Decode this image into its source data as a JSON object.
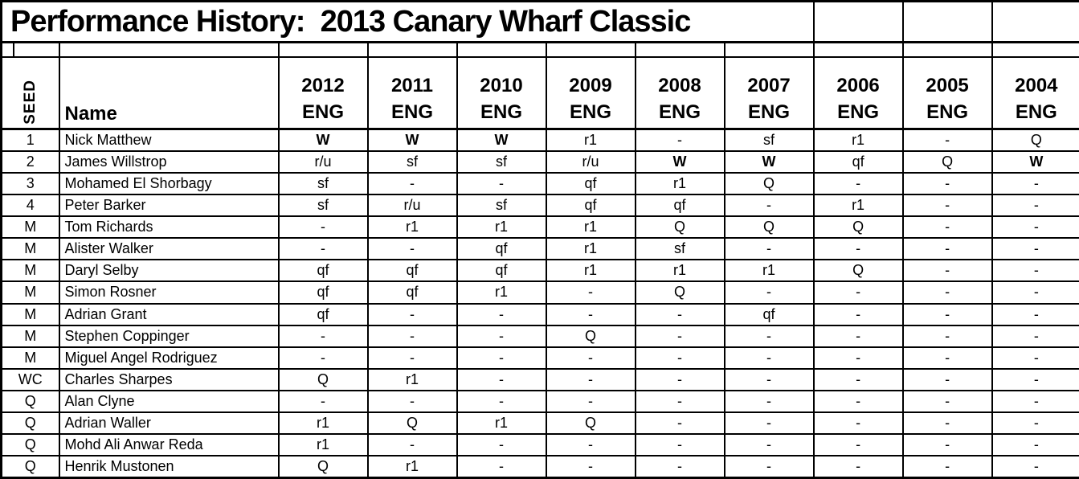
{
  "title": "Performance History:  2013 Canary Wharf Classic",
  "title_row_empty_cells": 3,
  "header": {
    "seed": "SEED",
    "name": "Name"
  },
  "years": [
    {
      "year": "2012",
      "country": "ENG"
    },
    {
      "year": "2011",
      "country": "ENG"
    },
    {
      "year": "2010",
      "country": "ENG"
    },
    {
      "year": "2009",
      "country": "ENG"
    },
    {
      "year": "2008",
      "country": "ENG"
    },
    {
      "year": "2007",
      "country": "ENG"
    },
    {
      "year": "2006",
      "country": "ENG"
    },
    {
      "year": "2005",
      "country": "ENG"
    },
    {
      "year": "2004",
      "country": "ENG"
    }
  ],
  "rows": [
    {
      "seed": "1",
      "name": "Nick Matthew",
      "results": [
        "W",
        "W",
        "W",
        "r1",
        "-",
        "sf",
        "r1",
        "-",
        "Q"
      ]
    },
    {
      "seed": "2",
      "name": "James Willstrop",
      "results": [
        "r/u",
        "sf",
        "sf",
        "r/u",
        "W",
        "W",
        "qf",
        "Q",
        "W"
      ]
    },
    {
      "seed": "3",
      "name": "Mohamed El Shorbagy",
      "results": [
        "sf",
        "-",
        "-",
        "qf",
        "r1",
        "Q",
        "-",
        "-",
        "-"
      ]
    },
    {
      "seed": "4",
      "name": "Peter Barker",
      "results": [
        "sf",
        "r/u",
        "sf",
        "qf",
        "qf",
        "-",
        "r1",
        "-",
        "-"
      ]
    },
    {
      "seed": "M",
      "name": "Tom Richards",
      "results": [
        "-",
        "r1",
        "r1",
        "r1",
        "Q",
        "Q",
        "Q",
        "-",
        "-"
      ]
    },
    {
      "seed": "M",
      "name": "Alister Walker",
      "results": [
        "-",
        "-",
        "qf",
        "r1",
        "sf",
        "-",
        "-",
        "-",
        "-"
      ]
    },
    {
      "seed": "M",
      "name": "Daryl Selby",
      "results": [
        "qf",
        "qf",
        "qf",
        "r1",
        "r1",
        "r1",
        "Q",
        "-",
        "-"
      ]
    },
    {
      "seed": "M",
      "name": "Simon Rosner",
      "results": [
        "qf",
        "qf",
        "r1",
        "-",
        "Q",
        "-",
        "-",
        "-",
        "-"
      ]
    },
    {
      "seed": "M",
      "name": "Adrian Grant",
      "results": [
        "qf",
        "-",
        "-",
        "-",
        "-",
        "qf",
        "-",
        "-",
        "-"
      ]
    },
    {
      "seed": "M",
      "name": "Stephen Coppinger",
      "results": [
        "-",
        "-",
        "-",
        "Q",
        "-",
        "-",
        "-",
        "-",
        "-"
      ]
    },
    {
      "seed": "M",
      "name": "Miguel Angel Rodriguez",
      "results": [
        "-",
        "-",
        "-",
        "-",
        "-",
        "-",
        "-",
        "-",
        "-"
      ]
    },
    {
      "seed": "WC",
      "name": "Charles Sharpes",
      "results": [
        "Q",
        "r1",
        "-",
        "-",
        "-",
        "-",
        "-",
        "-",
        "-"
      ]
    },
    {
      "seed": "Q",
      "name": "Alan Clyne",
      "results": [
        "-",
        "-",
        "-",
        "-",
        "-",
        "-",
        "-",
        "-",
        "-"
      ]
    },
    {
      "seed": "Q",
      "name": "Adrian Waller",
      "results": [
        "r1",
        "Q",
        "r1",
        "Q",
        "-",
        "-",
        "-",
        "-",
        "-"
      ]
    },
    {
      "seed": "Q",
      "name": "Mohd Ali Anwar Reda",
      "results": [
        "r1",
        "-",
        "-",
        "-",
        "-",
        "-",
        "-",
        "-",
        "-"
      ]
    },
    {
      "seed": "Q",
      "name": "Henrik Mustonen",
      "results": [
        "Q",
        "r1",
        "-",
        "-",
        "-",
        "-",
        "-",
        "-",
        "-"
      ]
    }
  ],
  "win_marker": "W",
  "colors": {
    "text": "#000000",
    "border": "#000000",
    "background": "#ffffff"
  }
}
